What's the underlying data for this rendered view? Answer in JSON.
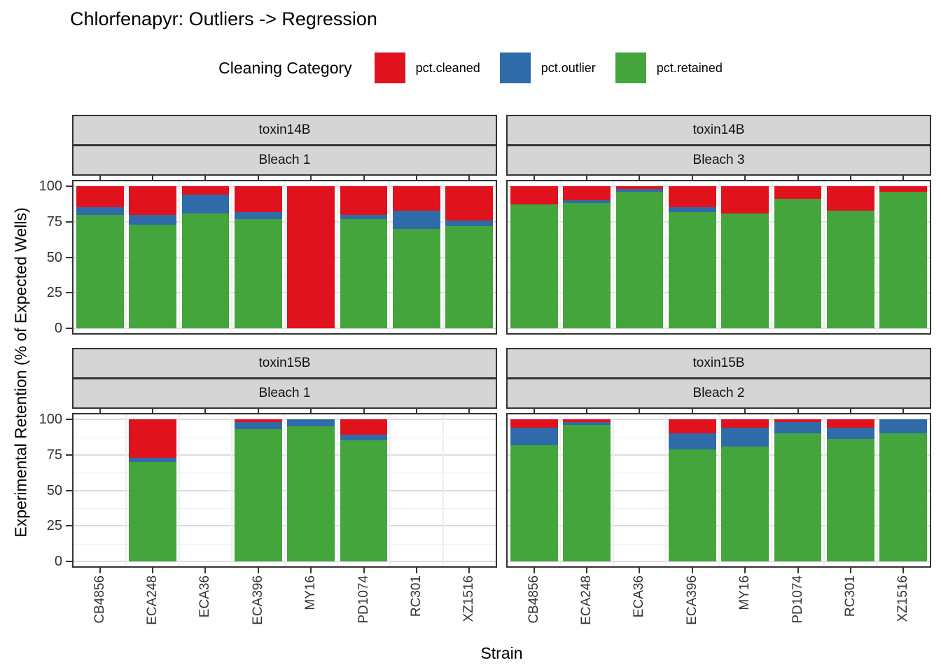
{
  "chart_data": {
    "type": "bar",
    "stacked": true,
    "title": "Chlorfenapyr: Outliers -> Regression",
    "xlabel": "Strain",
    "ylabel": "Experimental Retention (% of Expected Wells)",
    "ylim": [
      0,
      100
    ],
    "yticks": [
      0,
      25,
      50,
      75,
      100
    ],
    "grid": {
      "major_horizontal": [
        0,
        25,
        50,
        75,
        100
      ],
      "minor_horizontal": [
        12.5,
        37.5,
        62.5,
        87.5
      ]
    },
    "categories": [
      "CB4856",
      "ECA248",
      "ECA36",
      "ECA396",
      "MY16",
      "PD1074",
      "RC301",
      "XZ1516"
    ],
    "stack_order_bottom_to_top": [
      "pct.retained",
      "pct.outlier",
      "pct.cleaned"
    ],
    "legend": {
      "title": "Cleaning Category",
      "position": "top",
      "entries": [
        {
          "label": "pct.cleaned",
          "color": "#e0121e"
        },
        {
          "label": "pct.outlier",
          "color": "#2e6ba8"
        },
        {
          "label": "pct.retained",
          "color": "#43a53c"
        }
      ]
    },
    "facets": [
      {
        "strip_top": "toxin14B",
        "strip_bottom": "Bleach 1",
        "bars": {
          "CB4856": {
            "pct.retained": 80,
            "pct.outlier": 5,
            "pct.cleaned": 15
          },
          "ECA248": {
            "pct.retained": 73,
            "pct.outlier": 7,
            "pct.cleaned": 20
          },
          "ECA36": {
            "pct.retained": 81,
            "pct.outlier": 13,
            "pct.cleaned": 6
          },
          "ECA396": {
            "pct.retained": 77,
            "pct.outlier": 5,
            "pct.cleaned": 18
          },
          "MY16": {
            "pct.retained": 0,
            "pct.outlier": 0,
            "pct.cleaned": 100
          },
          "PD1074": {
            "pct.retained": 77,
            "pct.outlier": 3,
            "pct.cleaned": 20
          },
          "RC301": {
            "pct.retained": 70,
            "pct.outlier": 13,
            "pct.cleaned": 17
          },
          "XZ1516": {
            "pct.retained": 72,
            "pct.outlier": 4,
            "pct.cleaned": 24
          }
        }
      },
      {
        "strip_top": "toxin14B",
        "strip_bottom": "Bleach 3",
        "bars": {
          "CB4856": {
            "pct.retained": 87,
            "pct.outlier": 0,
            "pct.cleaned": 13
          },
          "ECA248": {
            "pct.retained": 88,
            "pct.outlier": 2,
            "pct.cleaned": 10
          },
          "ECA36": {
            "pct.retained": 96,
            "pct.outlier": 2,
            "pct.cleaned": 2
          },
          "ECA396": {
            "pct.retained": 82,
            "pct.outlier": 3,
            "pct.cleaned": 15
          },
          "MY16": {
            "pct.retained": 81,
            "pct.outlier": 0,
            "pct.cleaned": 19
          },
          "PD1074": {
            "pct.retained": 91,
            "pct.outlier": 0,
            "pct.cleaned": 9
          },
          "RC301": {
            "pct.retained": 83,
            "pct.outlier": 0,
            "pct.cleaned": 17
          },
          "XZ1516": {
            "pct.retained": 96,
            "pct.outlier": 0,
            "pct.cleaned": 4
          }
        }
      },
      {
        "strip_top": "toxin15B",
        "strip_bottom": "Bleach 1",
        "bars": {
          "CB4856": null,
          "ECA248": {
            "pct.retained": 70,
            "pct.outlier": 3,
            "pct.cleaned": 27
          },
          "ECA36": null,
          "ECA396": {
            "pct.retained": 93,
            "pct.outlier": 5,
            "pct.cleaned": 2
          },
          "MY16": {
            "pct.retained": 95,
            "pct.outlier": 5,
            "pct.cleaned": 0
          },
          "PD1074": {
            "pct.retained": 85,
            "pct.outlier": 4,
            "pct.cleaned": 11
          },
          "RC301": null,
          "XZ1516": null
        }
      },
      {
        "strip_top": "toxin15B",
        "strip_bottom": "Bleach 2",
        "bars": {
          "CB4856": {
            "pct.retained": 82,
            "pct.outlier": 12,
            "pct.cleaned": 6
          },
          "ECA248": {
            "pct.retained": 96,
            "pct.outlier": 2,
            "pct.cleaned": 2
          },
          "ECA36": null,
          "ECA396": {
            "pct.retained": 79,
            "pct.outlier": 11,
            "pct.cleaned": 10
          },
          "MY16": {
            "pct.retained": 81,
            "pct.outlier": 13,
            "pct.cleaned": 6
          },
          "PD1074": {
            "pct.retained": 90,
            "pct.outlier": 8,
            "pct.cleaned": 2
          },
          "RC301": {
            "pct.retained": 86,
            "pct.outlier": 8,
            "pct.cleaned": 6
          },
          "XZ1516": {
            "pct.retained": 90,
            "pct.outlier": 10,
            "pct.cleaned": 0
          }
        }
      }
    ]
  }
}
